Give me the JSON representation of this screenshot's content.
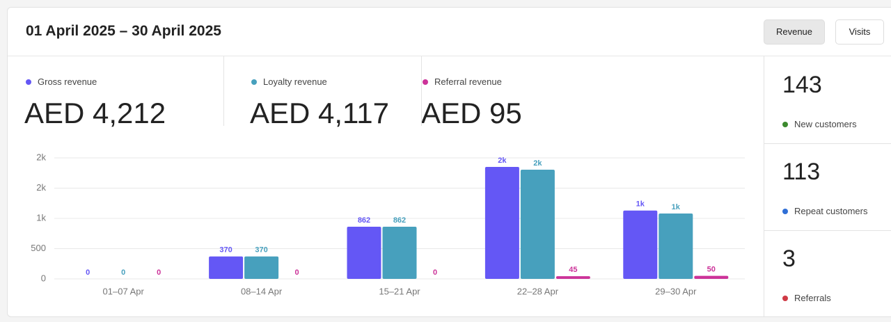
{
  "header": {
    "title": "01 April 2025 – 30 April 2025",
    "buttons": [
      "Revenue",
      "Visits"
    ]
  },
  "kpis": [
    {
      "name": "Gross revenue",
      "color": "#6457f5",
      "value": "AED 4,212"
    },
    {
      "name": "Loyalty revenue",
      "color": "#47a0bd",
      "value": "AED 4,117"
    },
    {
      "name": "Referral revenue",
      "color": "#cc3399",
      "value": "AED 95"
    }
  ],
  "stats": [
    {
      "value": 143,
      "label": "New customers",
      "color": "#3c8a2e"
    },
    {
      "value": 113,
      "label": "Repeat customers",
      "color": "#2f6fd6"
    },
    {
      "value": 3,
      "label": "Referrals",
      "color": "#cf3a45"
    }
  ],
  "chart_data": {
    "type": "bar",
    "categories": [
      "01–07 Apr",
      "08–14 Apr",
      "15–21 Apr",
      "22–28 Apr",
      "29–30 Apr"
    ],
    "series": [
      {
        "name": "Gross revenue",
        "color": "#6457f5",
        "values": [
          0,
          370,
          862,
          1850,
          1130
        ],
        "value_labels": [
          "0",
          "370",
          "862",
          "2k",
          "1k"
        ]
      },
      {
        "name": "Loyalty revenue",
        "color": "#47a0bd",
        "values": [
          0,
          370,
          862,
          1805,
          1080
        ],
        "value_labels": [
          "0",
          "370",
          "862",
          "2k",
          "1k"
        ]
      },
      {
        "name": "Referral revenue",
        "color": "#cc3399",
        "values": [
          0,
          0,
          0,
          45,
          50
        ]
      }
    ],
    "ylim": [
      0,
      2000
    ],
    "yticks": [
      0,
      500,
      {
        "value": 1000,
        "label": "1k"
      },
      {
        "value": 1500,
        "label": "2k"
      },
      {
        "value": 2000,
        "label": "2k"
      }
    ],
    "grid": true
  }
}
